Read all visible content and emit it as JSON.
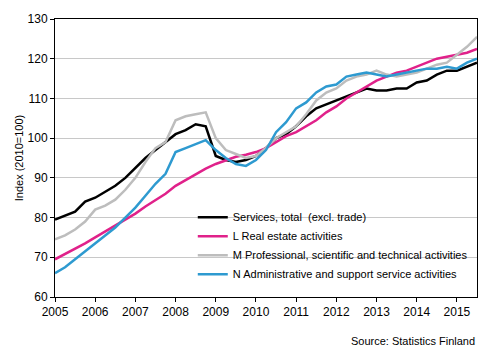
{
  "chart_data": {
    "type": "line",
    "y_label": "Index (2010=100)",
    "annotations": [
      {
        "text": "Source: Statistics Finland"
      }
    ],
    "x": [
      2005,
      2005.25,
      2005.5,
      2005.75,
      2006,
      2006.25,
      2006.5,
      2006.75,
      2007,
      2007.25,
      2007.5,
      2007.75,
      2008,
      2008.25,
      2008.5,
      2008.75,
      2009,
      2009.25,
      2009.5,
      2009.75,
      2010,
      2010.25,
      2010.5,
      2010.75,
      2011,
      2011.25,
      2011.5,
      2011.75,
      2012,
      2012.25,
      2012.5,
      2012.75,
      2013,
      2013.25,
      2013.5,
      2013.75,
      2014,
      2014.25,
      2014.5,
      2014.75,
      2015,
      2015.25,
      2015.5
    ],
    "series": [
      {
        "name": "Services, total  (excl. trade)",
        "color": "#000000",
        "values": [
          79.5,
          80.5,
          81.5,
          84,
          85,
          86.5,
          88,
          90,
          92.5,
          95,
          97,
          99,
          101,
          102,
          103.5,
          103,
          95.5,
          94.5,
          94,
          94.5,
          95.5,
          97.5,
          100,
          101,
          103,
          105.5,
          107.5,
          108.5,
          109.5,
          110.5,
          111.5,
          112.5,
          112,
          112,
          112.5,
          112.5,
          114,
          114.5,
          116,
          117,
          117,
          118,
          119
        ]
      },
      {
        "name": "L Real estate activities",
        "color": "#e0218a",
        "values": [
          69.5,
          70.8,
          72,
          73.5,
          75,
          76.5,
          78,
          79.5,
          81,
          82.8,
          84.5,
          86,
          88,
          89.5,
          91,
          92.3,
          93.5,
          94.5,
          95.3,
          95.8,
          96.5,
          97.5,
          99,
          100.5,
          101.5,
          103,
          104.5,
          106.5,
          108,
          110,
          111.5,
          113,
          114.5,
          115.5,
          116.5,
          117,
          118,
          119,
          120,
          120.5,
          121,
          121.5,
          122.5
        ]
      },
      {
        "name": "M Professional, scientific and technical activities",
        "color": "#bdbdbd",
        "values": [
          74.5,
          75.5,
          77,
          79,
          82,
          83,
          84.5,
          87,
          90,
          94,
          97.5,
          99,
          104.5,
          105.5,
          106,
          106.5,
          100,
          97,
          96,
          95,
          95.5,
          97.5,
          100,
          101.5,
          103,
          106,
          109.5,
          111.5,
          112.5,
          114.5,
          115.5,
          116,
          117,
          116,
          115.5,
          116,
          116.5,
          117.5,
          118.5,
          119,
          121,
          123,
          125.5
        ]
      },
      {
        "name": "N Administrative and support service activities",
        "color": "#2e9ad0",
        "values": [
          66,
          67.5,
          69.5,
          71.5,
          73.5,
          75.5,
          77.5,
          80,
          82.5,
          85.5,
          88.5,
          91,
          96.5,
          97.5,
          98.5,
          99.5,
          97,
          95,
          93.5,
          93,
          94.5,
          97,
          101.5,
          104,
          107.5,
          109,
          111.5,
          113,
          113.5,
          115.5,
          116,
          116.5,
          116,
          115.5,
          116,
          116.5,
          117,
          117.5,
          117.5,
          118,
          117.5,
          119,
          120
        ]
      }
    ],
    "xlim": [
      2005,
      2015.5
    ],
    "xticks": [
      2005,
      2006,
      2007,
      2008,
      2009,
      2010,
      2011,
      2012,
      2013,
      2014,
      2015
    ],
    "ylim": [
      60,
      130
    ],
    "yticks": [
      60,
      70,
      80,
      90,
      100,
      110,
      120,
      130
    ],
    "grid": true,
    "legend": "bottom right"
  }
}
